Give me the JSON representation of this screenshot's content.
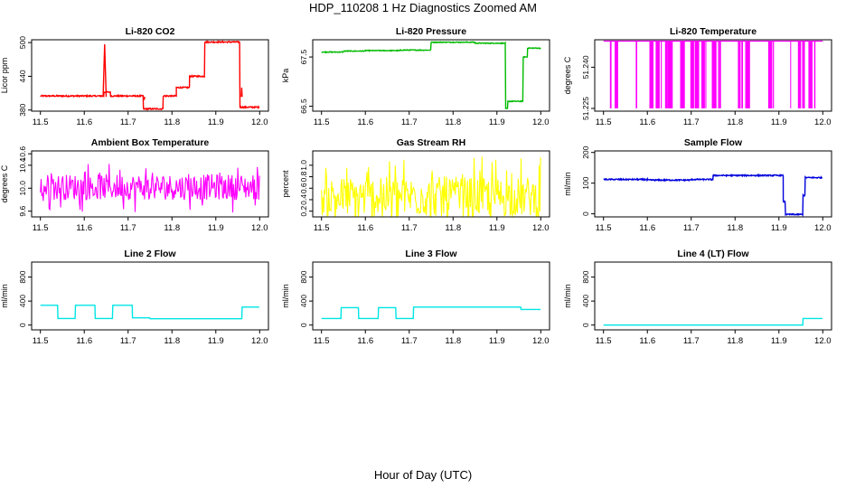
{
  "figure": {
    "title": "HDP_110208  1 Hz Diagnostics Zoomed AM",
    "xlabel": "Hour of Day (UTC)"
  },
  "chart_data": [
    {
      "type": "line",
      "title": "Li-820 CO2",
      "ylabel": "Licor ppm",
      "color": "#ff0000",
      "xlim": [
        11.48,
        12.02
      ],
      "ylim": [
        378,
        505
      ],
      "xticks": [
        "11.5",
        "11.6",
        "11.7",
        "11.8",
        "11.9",
        "12.0"
      ],
      "yticks": [
        {
          "value": 380,
          "label": "380"
        },
        {
          "value": 440,
          "label": "440"
        },
        {
          "value": 500,
          "label": "500"
        }
      ],
      "segments": [
        [
          11.5,
          11.645,
          405
        ],
        [
          11.645,
          11.66,
          412
        ],
        [
          11.66,
          11.735,
          405
        ],
        [
          11.735,
          11.78,
          382
        ],
        [
          11.78,
          11.81,
          405
        ],
        [
          11.81,
          11.84,
          420
        ],
        [
          11.84,
          11.875,
          440
        ],
        [
          11.875,
          11.955,
          501
        ],
        [
          11.955,
          12.0,
          385
        ]
      ],
      "noise": 1.2,
      "spikes": [
        [
          11.643,
          11.65,
          497
        ],
        [
          11.735,
          11.738,
          398
        ],
        [
          11.958,
          11.96,
          420
        ]
      ]
    },
    {
      "type": "line",
      "title": "Li-820 Pressure",
      "ylabel": "kPa",
      "color": "#00bb00",
      "xlim": [
        11.48,
        12.02
      ],
      "ylim": [
        66.4,
        67.85
      ],
      "xticks": [
        "11.5",
        "11.6",
        "11.7",
        "11.8",
        "11.9",
        "12.0"
      ],
      "yticks": [
        {
          "value": 66.5,
          "label": "66.5"
        },
        {
          "value": 67.5,
          "label": "67.5"
        }
      ],
      "segments": [
        [
          11.5,
          11.55,
          67.6
        ],
        [
          11.55,
          11.6,
          67.62
        ],
        [
          11.6,
          11.68,
          67.63
        ],
        [
          11.68,
          11.75,
          67.64
        ],
        [
          11.75,
          11.85,
          67.8
        ],
        [
          11.85,
          11.92,
          67.78
        ],
        [
          11.92,
          11.925,
          66.45
        ],
        [
          11.925,
          11.96,
          66.6
        ],
        [
          11.96,
          11.97,
          67.5
        ],
        [
          11.97,
          12.0,
          67.68
        ]
      ],
      "noise": 0.008,
      "spikes": []
    },
    {
      "type": "bars",
      "title": "Li-820 Temperature",
      "ylabel": "degrees C",
      "color": "#ff00ff",
      "xlim": [
        11.48,
        12.02
      ],
      "ylim": [
        51.224,
        51.25
      ],
      "xticks": [
        "11.5",
        "11.6",
        "11.7",
        "11.8",
        "11.9",
        "12.0"
      ],
      "yticks": [
        {
          "value": 51.225,
          "label": "51.225"
        },
        {
          "value": 51.24,
          "label": "51.240"
        }
      ],
      "low": 51.225,
      "high": 51.2495
    },
    {
      "type": "noise",
      "title": "Ambient Box Temperature",
      "ylabel": "degrees C",
      "color": "#ff00ff",
      "xlim": [
        11.48,
        12.02
      ],
      "ylim": [
        9.5,
        10.65
      ],
      "xticks": [
        "11.5",
        "11.6",
        "11.7",
        "11.8",
        "11.9",
        "12.0"
      ],
      "yticks": [
        {
          "value": 9.6,
          "label": "9.6"
        },
        {
          "value": 10.0,
          "label": "10.0"
        },
        {
          "value": 10.4,
          "label": "10.4"
        },
        {
          "value": 10.6,
          "label": "10.6"
        }
      ],
      "mean": 10.02,
      "spread": 0.45
    },
    {
      "type": "noise",
      "title": "Gas Stream RH",
      "ylabel": "percent",
      "color": "#ffff00",
      "xlim": [
        11.48,
        12.02
      ],
      "ylim": [
        0.1,
        1.25
      ],
      "xticks": [
        "11.5",
        "11.6",
        "11.7",
        "11.8",
        "11.9",
        "12.0"
      ],
      "yticks": [
        {
          "value": 0.2,
          "label": "0.2"
        },
        {
          "value": 0.4,
          "label": "0.4"
        },
        {
          "value": 0.6,
          "label": "0.6"
        },
        {
          "value": 0.8,
          "label": "0.8"
        },
        {
          "value": 1.0,
          "label": "1.0"
        }
      ],
      "mean": 0.45,
      "spread": 0.7
    },
    {
      "type": "line",
      "title": "Sample Flow",
      "ylabel": "ml/min",
      "color": "#0000dd",
      "xlim": [
        11.48,
        12.02
      ],
      "ylim": [
        -10,
        205
      ],
      "xticks": [
        "11.5",
        "11.6",
        "11.7",
        "11.8",
        "11.9",
        "12.0"
      ],
      "yticks": [
        {
          "value": 0,
          "label": "0"
        },
        {
          "value": 100,
          "label": "100"
        },
        {
          "value": 200,
          "label": "200"
        }
      ],
      "segments": [
        [
          11.5,
          11.6,
          112
        ],
        [
          11.6,
          11.7,
          110
        ],
        [
          11.7,
          11.75,
          112
        ],
        [
          11.75,
          11.91,
          125
        ],
        [
          11.91,
          11.915,
          40
        ],
        [
          11.915,
          11.955,
          -2
        ],
        [
          11.955,
          11.96,
          60
        ],
        [
          11.96,
          12.0,
          118
        ]
      ],
      "noise": 2,
      "spikes": []
    },
    {
      "type": "line",
      "title": "Line 2 Flow",
      "ylabel": "ml/min",
      "color": "#00e5e5",
      "xlim": [
        11.48,
        12.02
      ],
      "ylim": [
        -80,
        1050
      ],
      "xticks": [
        "11.5",
        "11.6",
        "11.7",
        "11.8",
        "11.9",
        "12.0"
      ],
      "yticks": [
        {
          "value": 0,
          "label": "0"
        },
        {
          "value": 400,
          "label": "400"
        },
        {
          "value": 800,
          "label": "800"
        }
      ],
      "segments": [
        [
          11.5,
          11.54,
          330
        ],
        [
          11.54,
          11.58,
          110
        ],
        [
          11.58,
          11.625,
          330
        ],
        [
          11.625,
          11.665,
          110
        ],
        [
          11.665,
          11.71,
          330
        ],
        [
          11.71,
          11.75,
          120
        ],
        [
          11.75,
          11.96,
          105
        ],
        [
          11.96,
          12.0,
          300
        ]
      ],
      "noise": 0,
      "spikes": []
    },
    {
      "type": "line",
      "title": "Line 3 Flow",
      "ylabel": "ml/min",
      "color": "#00e5e5",
      "xlim": [
        11.48,
        12.02
      ],
      "ylim": [
        -80,
        1050
      ],
      "xticks": [
        "11.5",
        "11.6",
        "11.7",
        "11.8",
        "11.9",
        "12.0"
      ],
      "yticks": [
        {
          "value": 0,
          "label": "0"
        },
        {
          "value": 400,
          "label": "400"
        },
        {
          "value": 800,
          "label": "800"
        }
      ],
      "segments": [
        [
          11.5,
          11.545,
          110
        ],
        [
          11.545,
          11.585,
          290
        ],
        [
          11.585,
          11.63,
          110
        ],
        [
          11.63,
          11.67,
          290
        ],
        [
          11.67,
          11.71,
          110
        ],
        [
          11.71,
          11.955,
          300
        ],
        [
          11.955,
          12.0,
          260
        ]
      ],
      "noise": 0,
      "spikes": []
    },
    {
      "type": "line",
      "title": "Line 4 (LT) Flow",
      "ylabel": "ml/min",
      "color": "#00e5e5",
      "xlim": [
        11.48,
        12.02
      ],
      "ylim": [
        -80,
        1050
      ],
      "xticks": [
        "11.5",
        "11.6",
        "11.7",
        "11.8",
        "11.9",
        "12.0"
      ],
      "yticks": [
        {
          "value": 0,
          "label": "0"
        },
        {
          "value": 400,
          "label": "400"
        },
        {
          "value": 800,
          "label": "800"
        }
      ],
      "segments": [
        [
          11.5,
          11.955,
          0
        ],
        [
          11.955,
          12.0,
          110
        ]
      ],
      "noise": 0,
      "spikes": []
    }
  ]
}
